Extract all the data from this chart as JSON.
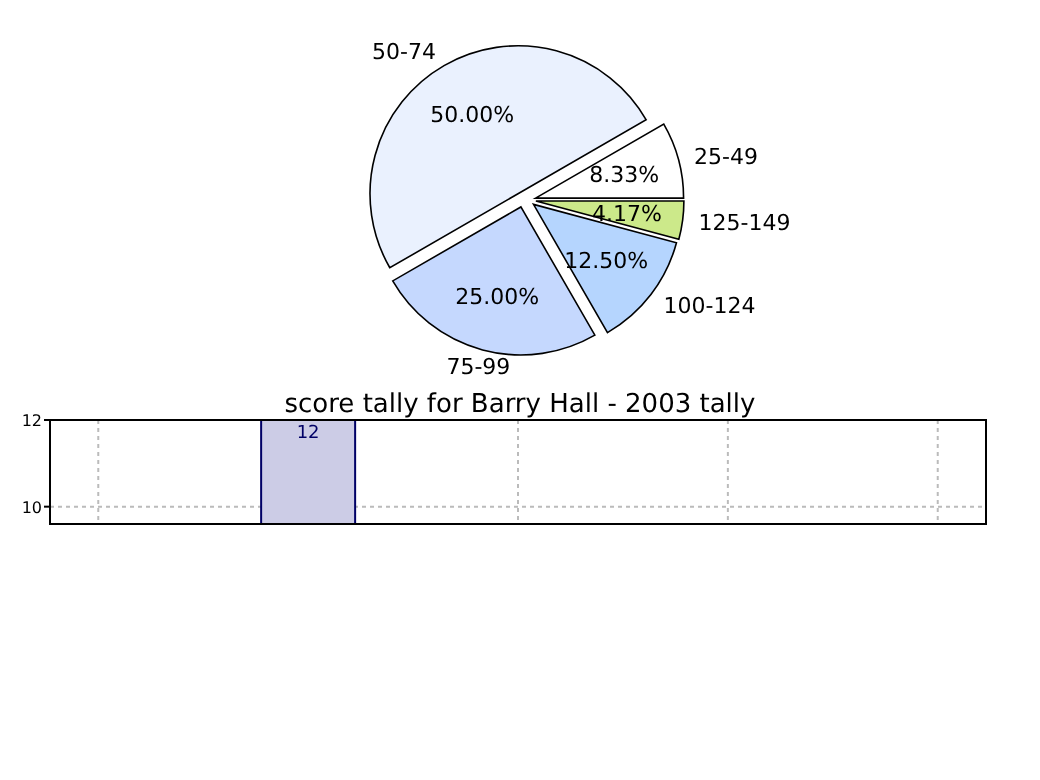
{
  "chart_data": [
    {
      "type": "pie",
      "categories": [
        "125-149",
        "100-124",
        "75-99",
        "50-74",
        "25-49"
      ],
      "values": [
        4.17,
        12.5,
        25,
        50,
        8.33
      ],
      "colors": [
        "#cce98a",
        "#b5d5fe",
        "#c5d8fe",
        "#eaf1fe",
        "#ffffff"
      ],
      "value_labels": [
        "4.17%",
        "12.50%",
        "25.00%",
        "50.00%",
        "8.33%"
      ]
    },
    {
      "type": "bar",
      "title": "score tally for Barry Hall - 2003 tally",
      "categories": [
        null,
        null,
        null,
        null,
        null
      ],
      "values": [
        null,
        12,
        null,
        null,
        null
      ],
      "color": "#cccce6",
      "data_labels": true,
      "ylim": [
        9.6,
        12
      ],
      "yticks": [
        10,
        12
      ],
      "grid": true
    }
  ]
}
